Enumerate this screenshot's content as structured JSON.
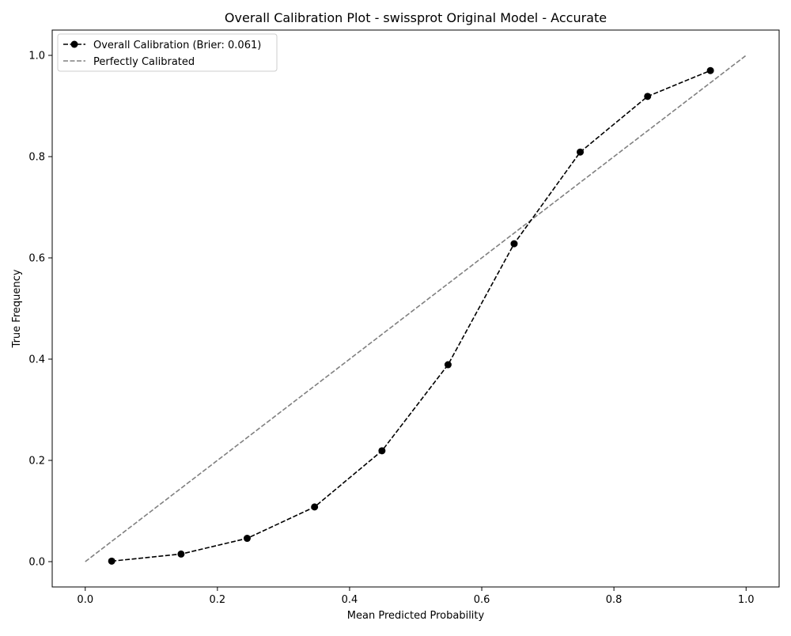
{
  "chart_data": {
    "type": "line",
    "title": "Overall Calibration Plot - swissprot Original Model - Accurate",
    "xlabel": "Mean Predicted Probability",
    "ylabel": "True Frequency",
    "xlim": [
      -0.05,
      1.05
    ],
    "ylim": [
      -0.05,
      1.05
    ],
    "xticks": [
      0.0,
      0.2,
      0.4,
      0.6,
      0.8,
      1.0
    ],
    "yticks": [
      0.0,
      0.2,
      0.4,
      0.6,
      0.8,
      1.0
    ],
    "xtick_labels": [
      "0.0",
      "0.2",
      "0.4",
      "0.6",
      "0.8",
      "1.0"
    ],
    "ytick_labels": [
      "0.0",
      "0.2",
      "0.4",
      "0.6",
      "0.8",
      "1.0"
    ],
    "grid": false,
    "legend_position": "top-left",
    "series": [
      {
        "name": "Overall Calibration (Brier: 0.061)",
        "style": "dashed-with-markers",
        "color": "#000000",
        "x": [
          0.04,
          0.145,
          0.245,
          0.347,
          0.449,
          0.549,
          0.649,
          0.749,
          0.851,
          0.946
        ],
        "y": [
          0.001,
          0.015,
          0.046,
          0.108,
          0.219,
          0.389,
          0.628,
          0.809,
          0.919,
          0.97
        ]
      },
      {
        "name": "Perfectly Calibrated",
        "style": "dashed",
        "color": "#808080",
        "x": [
          0.0,
          1.0
        ],
        "y": [
          0.0,
          1.0
        ]
      }
    ]
  }
}
